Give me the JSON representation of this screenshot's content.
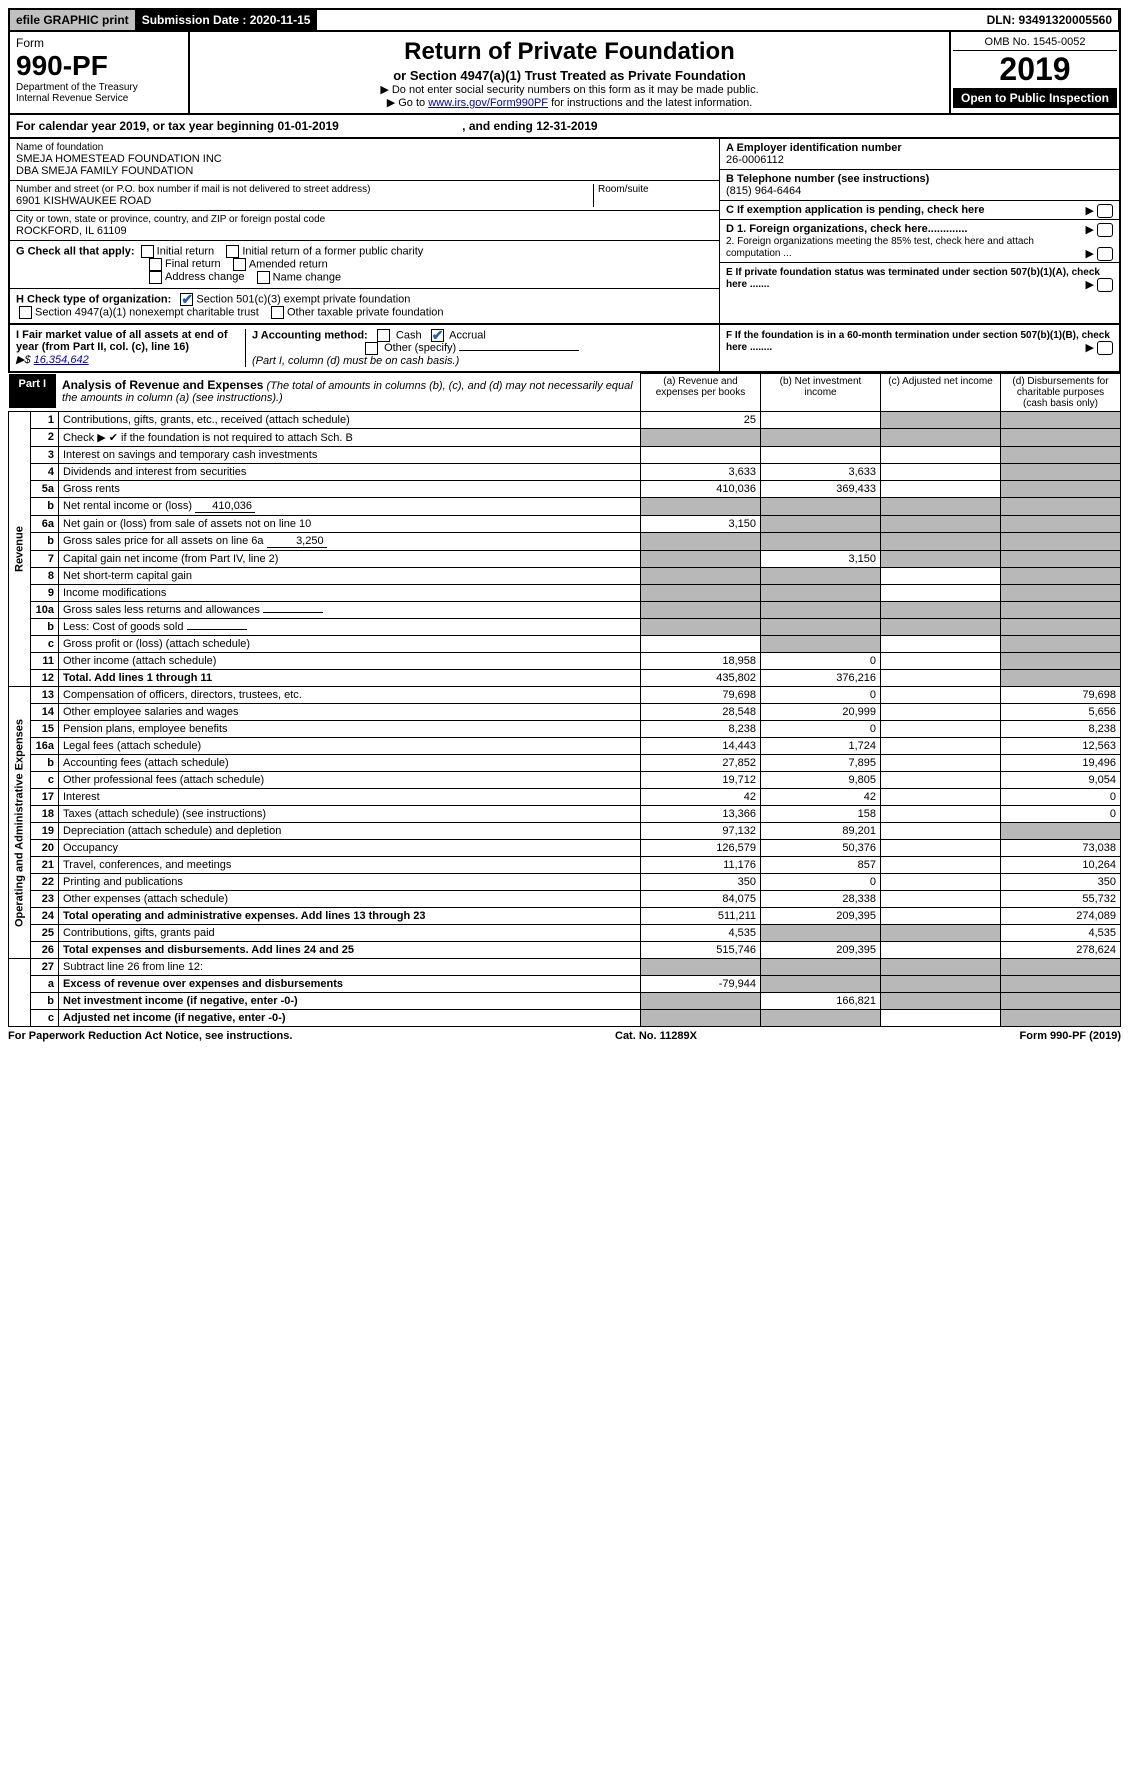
{
  "topbar": {
    "efile": "efile GRAPHIC print",
    "sub_label": "Submission Date : 2020-11-15",
    "dln": "DLN: 93491320005560"
  },
  "header": {
    "form_word": "Form",
    "form_num": "990-PF",
    "dept": "Department of the Treasury",
    "irs": "Internal Revenue Service",
    "title": "Return of Private Foundation",
    "subtitle": "or Section 4947(a)(1) Trust Treated as Private Foundation",
    "instr1": "▶ Do not enter social security numbers on this form as it may be made public.",
    "instr2_pre": "▶ Go to ",
    "instr2_link": "www.irs.gov/Form990PF",
    "instr2_post": " for instructions and the latest information.",
    "omb": "OMB No. 1545-0052",
    "year": "2019",
    "open": "Open to Public Inspection"
  },
  "cal": {
    "text_pre": "For calendar year 2019, or tax year beginning ",
    "begin": "01-01-2019",
    "mid": " , and ending ",
    "end": "12-31-2019"
  },
  "info": {
    "name_label": "Name of foundation",
    "name1": "SMEJA HOMESTEAD FOUNDATION INC",
    "name2": "DBA SMEJA FAMILY FOUNDATION",
    "addr_label": "Number and street (or P.O. box number if mail is not delivered to street address)",
    "addr": "6901 KISHWAUKEE ROAD",
    "room_label": "Room/suite",
    "city_label": "City or town, state or province, country, and ZIP or foreign postal code",
    "city": "ROCKFORD, IL  61109",
    "ein_label": "A Employer identification number",
    "ein": "26-0006112",
    "phone_label": "B Telephone number (see instructions)",
    "phone": "(815) 964-6464",
    "c_label": "C If exemption application is pending, check here",
    "d1": "D 1. Foreign organizations, check here.............",
    "d2": "2. Foreign organizations meeting the 85% test, check here and attach computation ...",
    "e": "E  If private foundation status was terminated under section 507(b)(1)(A), check here .......",
    "f": "F  If the foundation is in a 60-month termination under section 507(b)(1)(B), check here ........"
  },
  "g": {
    "label": "G Check all that apply:",
    "opt1": "Initial return",
    "opt2": "Initial return of a former public charity",
    "opt3": "Final return",
    "opt4": "Amended return",
    "opt5": "Address change",
    "opt6": "Name change"
  },
  "h": {
    "label": "H Check type of organization:",
    "opt1": "Section 501(c)(3) exempt private foundation",
    "opt2": "Section 4947(a)(1) nonexempt charitable trust",
    "opt3": "Other taxable private foundation"
  },
  "i": {
    "label": "I Fair market value of all assets at end of year (from Part II, col. (c), line 16)",
    "prefix": "▶$ ",
    "value": "16,354,642"
  },
  "j": {
    "label": "J Accounting method:",
    "cash": "Cash",
    "accrual": "Accrual",
    "other": "Other (specify)",
    "note": "(Part I, column (d) must be on cash basis.)"
  },
  "part1": {
    "tab": "Part I",
    "title": "Analysis of Revenue and Expenses",
    "title_note": " (The total of amounts in columns (b), (c), and (d) may not necessarily equal the amounts in column (a) (see instructions).)",
    "col_a": "(a) Revenue and expenses per books",
    "col_b": "(b) Net investment income",
    "col_c": "(c) Adjusted net income",
    "col_d": "(d) Disbursements for charitable purposes (cash basis only)",
    "side_rev": "Revenue",
    "side_exp": "Operating and Administrative Expenses"
  },
  "rows": [
    {
      "n": "1",
      "d": "Contributions, gifts, grants, etc., received (attach schedule)",
      "a": "25",
      "b": "",
      "c": "",
      "dd": "",
      "shade_c": true,
      "shade_d": true
    },
    {
      "n": "2",
      "d": "Check ▶ ✔ if the foundation is not required to attach Sch. B",
      "a": "",
      "b": "",
      "c": "",
      "dd": "",
      "shade_a": true,
      "shade_b": true,
      "shade_c": true,
      "shade_d": true,
      "bold_not": true
    },
    {
      "n": "3",
      "d": "Interest on savings and temporary cash investments",
      "a": "",
      "b": "",
      "c": "",
      "dd": "",
      "shade_d": true
    },
    {
      "n": "4",
      "d": "Dividends and interest from securities",
      "a": "3,633",
      "b": "3,633",
      "c": "",
      "dd": "",
      "shade_d": true
    },
    {
      "n": "5a",
      "d": "Gross rents",
      "a": "410,036",
      "b": "369,433",
      "c": "",
      "dd": "",
      "shade_d": true
    },
    {
      "n": "b",
      "d": "Net rental income or (loss)",
      "inline": "410,036",
      "a": "",
      "b": "",
      "c": "",
      "dd": "",
      "shade_a": true,
      "shade_b": true,
      "shade_c": true,
      "shade_d": true
    },
    {
      "n": "6a",
      "d": "Net gain or (loss) from sale of assets not on line 10",
      "a": "3,150",
      "b": "",
      "c": "",
      "dd": "",
      "shade_b": true,
      "shade_c": true,
      "shade_d": true
    },
    {
      "n": "b",
      "d": "Gross sales price for all assets on line 6a",
      "inline": "3,250",
      "a": "",
      "b": "",
      "c": "",
      "dd": "",
      "shade_a": true,
      "shade_b": true,
      "shade_c": true,
      "shade_d": true
    },
    {
      "n": "7",
      "d": "Capital gain net income (from Part IV, line 2)",
      "a": "",
      "b": "3,150",
      "c": "",
      "dd": "",
      "shade_a": true,
      "shade_c": true,
      "shade_d": true
    },
    {
      "n": "8",
      "d": "Net short-term capital gain",
      "a": "",
      "b": "",
      "c": "",
      "dd": "",
      "shade_a": true,
      "shade_b": true,
      "shade_d": true
    },
    {
      "n": "9",
      "d": "Income modifications",
      "a": "",
      "b": "",
      "c": "",
      "dd": "",
      "shade_a": true,
      "shade_b": true,
      "shade_d": true
    },
    {
      "n": "10a",
      "d": "Gross sales less returns and allowances",
      "inline": "",
      "a": "",
      "b": "",
      "c": "",
      "dd": "",
      "shade_a": true,
      "shade_b": true,
      "shade_c": true,
      "shade_d": true
    },
    {
      "n": "b",
      "d": "Less: Cost of goods sold",
      "inline": "",
      "a": "",
      "b": "",
      "c": "",
      "dd": "",
      "shade_a": true,
      "shade_b": true,
      "shade_c": true,
      "shade_d": true
    },
    {
      "n": "c",
      "d": "Gross profit or (loss) (attach schedule)",
      "a": "",
      "b": "",
      "c": "",
      "dd": "",
      "shade_b": true,
      "shade_d": true
    },
    {
      "n": "11",
      "d": "Other income (attach schedule)",
      "a": "18,958",
      "b": "0",
      "c": "",
      "dd": "",
      "shade_d": true
    },
    {
      "n": "12",
      "d": "Total. Add lines 1 through 11",
      "a": "435,802",
      "b": "376,216",
      "c": "",
      "dd": "",
      "bold": true,
      "shade_d": true
    }
  ],
  "exp_rows": [
    {
      "n": "13",
      "d": "Compensation of officers, directors, trustees, etc.",
      "a": "79,698",
      "b": "0",
      "c": "",
      "dd": "79,698"
    },
    {
      "n": "14",
      "d": "Other employee salaries and wages",
      "a": "28,548",
      "b": "20,999",
      "c": "",
      "dd": "5,656"
    },
    {
      "n": "15",
      "d": "Pension plans, employee benefits",
      "a": "8,238",
      "b": "0",
      "c": "",
      "dd": "8,238"
    },
    {
      "n": "16a",
      "d": "Legal fees (attach schedule)",
      "a": "14,443",
      "b": "1,724",
      "c": "",
      "dd": "12,563"
    },
    {
      "n": "b",
      "d": "Accounting fees (attach schedule)",
      "a": "27,852",
      "b": "7,895",
      "c": "",
      "dd": "19,496"
    },
    {
      "n": "c",
      "d": "Other professional fees (attach schedule)",
      "a": "19,712",
      "b": "9,805",
      "c": "",
      "dd": "9,054"
    },
    {
      "n": "17",
      "d": "Interest",
      "a": "42",
      "b": "42",
      "c": "",
      "dd": "0"
    },
    {
      "n": "18",
      "d": "Taxes (attach schedule) (see instructions)",
      "a": "13,366",
      "b": "158",
      "c": "",
      "dd": "0"
    },
    {
      "n": "19",
      "d": "Depreciation (attach schedule) and depletion",
      "a": "97,132",
      "b": "89,201",
      "c": "",
      "dd": "",
      "shade_d": true
    },
    {
      "n": "20",
      "d": "Occupancy",
      "a": "126,579",
      "b": "50,376",
      "c": "",
      "dd": "73,038"
    },
    {
      "n": "21",
      "d": "Travel, conferences, and meetings",
      "a": "11,176",
      "b": "857",
      "c": "",
      "dd": "10,264"
    },
    {
      "n": "22",
      "d": "Printing and publications",
      "a": "350",
      "b": "0",
      "c": "",
      "dd": "350"
    },
    {
      "n": "23",
      "d": "Other expenses (attach schedule)",
      "a": "84,075",
      "b": "28,338",
      "c": "",
      "dd": "55,732"
    },
    {
      "n": "24",
      "d": "Total operating and administrative expenses. Add lines 13 through 23",
      "a": "511,211",
      "b": "209,395",
      "c": "",
      "dd": "274,089",
      "bold": true
    },
    {
      "n": "25",
      "d": "Contributions, gifts, grants paid",
      "a": "4,535",
      "b": "",
      "c": "",
      "dd": "4,535",
      "shade_b": true,
      "shade_c": true
    },
    {
      "n": "26",
      "d": "Total expenses and disbursements. Add lines 24 and 25",
      "a": "515,746",
      "b": "209,395",
      "c": "",
      "dd": "278,624",
      "bold": true
    }
  ],
  "final_rows": [
    {
      "n": "27",
      "d": "Subtract line 26 from line 12:",
      "a": "",
      "b": "",
      "c": "",
      "dd": "",
      "shade_a": true,
      "shade_b": true,
      "shade_c": true,
      "shade_d": true
    },
    {
      "n": "a",
      "d": "Excess of revenue over expenses and disbursements",
      "a": "-79,944",
      "b": "",
      "c": "",
      "dd": "",
      "bold": true,
      "shade_b": true,
      "shade_c": true,
      "shade_d": true
    },
    {
      "n": "b",
      "d": "Net investment income (if negative, enter -0-)",
      "a": "",
      "b": "166,821",
      "c": "",
      "dd": "",
      "bold": true,
      "shade_a": true,
      "shade_c": true,
      "shade_d": true
    },
    {
      "n": "c",
      "d": "Adjusted net income (if negative, enter -0-)",
      "a": "",
      "b": "",
      "c": "",
      "dd": "",
      "bold": true,
      "shade_a": true,
      "shade_b": true,
      "shade_d": true
    }
  ],
  "footer": {
    "left": "For Paperwork Reduction Act Notice, see instructions.",
    "mid": "Cat. No. 11289X",
    "right": "Form 990-PF (2019)"
  }
}
